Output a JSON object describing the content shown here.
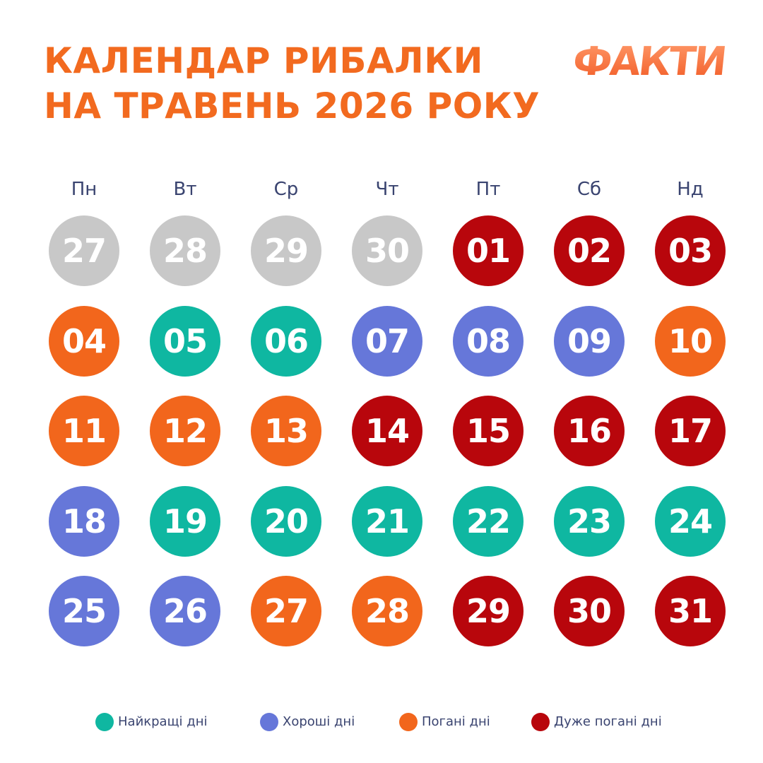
{
  "header": {
    "title_line1": "КАЛЕНДАР РИБАЛКИ",
    "title_line2": "НА ТРАВЕНЬ 2026 РОКУ",
    "logo": "ФАКТИ"
  },
  "weekdays": [
    "Пн",
    "Вт",
    "Ср",
    "Чт",
    "Пт",
    "Сб",
    "Нд"
  ],
  "colors": {
    "prev": "#c8c8c8",
    "best": "#0fb7a1",
    "good": "#6677d9",
    "bad": "#f2661c",
    "very_bad": "#b8060c"
  },
  "days": [
    {
      "n": "27",
      "c": "prev"
    },
    {
      "n": "28",
      "c": "prev"
    },
    {
      "n": "29",
      "c": "prev"
    },
    {
      "n": "30",
      "c": "prev"
    },
    {
      "n": "01",
      "c": "very_bad"
    },
    {
      "n": "02",
      "c": "very_bad"
    },
    {
      "n": "03",
      "c": "very_bad"
    },
    {
      "n": "04",
      "c": "bad"
    },
    {
      "n": "05",
      "c": "best"
    },
    {
      "n": "06",
      "c": "best"
    },
    {
      "n": "07",
      "c": "good"
    },
    {
      "n": "08",
      "c": "good"
    },
    {
      "n": "09",
      "c": "good"
    },
    {
      "n": "10",
      "c": "bad"
    },
    {
      "n": "11",
      "c": "bad"
    },
    {
      "n": "12",
      "c": "bad"
    },
    {
      "n": "13",
      "c": "bad"
    },
    {
      "n": "14",
      "c": "very_bad"
    },
    {
      "n": "15",
      "c": "very_bad"
    },
    {
      "n": "16",
      "c": "very_bad"
    },
    {
      "n": "17",
      "c": "very_bad"
    },
    {
      "n": "18",
      "c": "good"
    },
    {
      "n": "19",
      "c": "best"
    },
    {
      "n": "20",
      "c": "best"
    },
    {
      "n": "21",
      "c": "best"
    },
    {
      "n": "22",
      "c": "best"
    },
    {
      "n": "23",
      "c": "best"
    },
    {
      "n": "24",
      "c": "best"
    },
    {
      "n": "25",
      "c": "good"
    },
    {
      "n": "26",
      "c": "good"
    },
    {
      "n": "27",
      "c": "bad"
    },
    {
      "n": "28",
      "c": "bad"
    },
    {
      "n": "29",
      "c": "very_bad"
    },
    {
      "n": "30",
      "c": "very_bad"
    },
    {
      "n": "31",
      "c": "very_bad"
    }
  ],
  "legend": [
    {
      "label": "Найкращі дні",
      "c": "best"
    },
    {
      "label": "Хороші дні",
      "c": "good"
    },
    {
      "label": "Погані дні",
      "c": "bad"
    },
    {
      "label": "Дуже погані дні",
      "c": "very_bad"
    }
  ]
}
